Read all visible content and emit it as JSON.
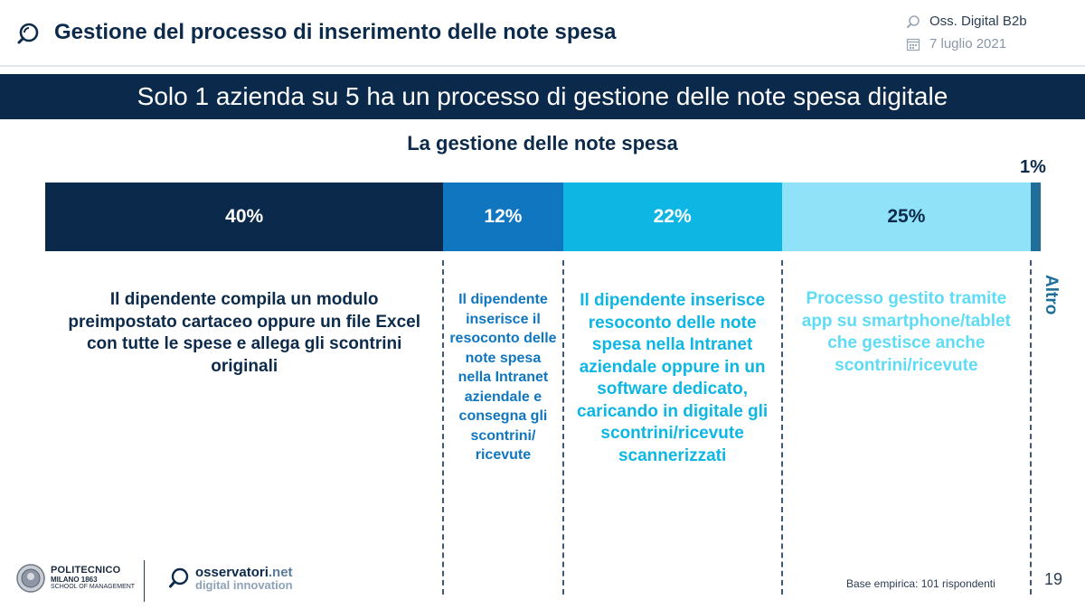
{
  "header": {
    "title": "Gestione del processo di inserimento delle note spesa",
    "source": "Oss. Digital B2b",
    "date": "7 luglio 2021"
  },
  "banner": {
    "text": "Solo 1 azienda su 5 ha un processo di gestione delle note spesa digitale"
  },
  "colors": {
    "navy": "#0b2a4b",
    "blue": "#0f76bf",
    "cyan": "#0db6e3",
    "light_cyan": "#8fe2f7",
    "teal": "#1f6f9a"
  },
  "chart_data": {
    "type": "bar",
    "orientation": "horizontal-stacked-100",
    "title": "La gestione delle note spesa",
    "xlabel": "",
    "ylabel": "",
    "xlim": [
      0,
      100
    ],
    "legend": "none",
    "series": [
      {
        "name": "Il dipendente compila un modulo preimpostato cartaceo oppure un file Excel con tutte le spese e allega gli scontrini originali",
        "value": 40,
        "label": "40%",
        "color": "#0b2a4b",
        "label_color": "#ffffff",
        "text_color": "#0c2a4a"
      },
      {
        "name": "Il dipendente inserisce il resoconto delle note spesa nella Intranet aziendale e consegna gli scontrini/ ricevute",
        "value": 12,
        "label": "12%",
        "color": "#0f76bf",
        "label_color": "#ffffff",
        "text_color": "#0f76bf"
      },
      {
        "name": "Il dipendente inserisce resoconto delle note spesa nella Intranet aziendale oppure in un software dedicato, caricando in digitale gli scontrini/ricevute scannerizzati",
        "value": 22,
        "label": "22%",
        "color": "#0db6e3",
        "label_color": "#ffffff",
        "text_color": "#0db6e3"
      },
      {
        "name": "Processo gestito tramite app su smartphone/tablet che gestisce anche scontrini/ricevute",
        "value": 25,
        "label": "25%",
        "color": "#8fe2f7",
        "label_color": "#0c2a4a",
        "text_color": "#5fdcf5"
      },
      {
        "name": "Altro",
        "value": 1,
        "label": "1%",
        "color": "#1f6f9a",
        "label_color": "#0c2a4a",
        "text_color": "#1f6f9a"
      }
    ]
  },
  "footer": {
    "poli_name": "POLITECNICO",
    "poli_city": "MILANO 1863",
    "poli_school": "SCHOOL OF MANAGEMENT",
    "oss_brand": "osservatori",
    "oss_suffix": ".net",
    "oss_sub": "digital innovation",
    "base_note": "Base empirica: 101 rispondenti",
    "page_number": "19"
  }
}
